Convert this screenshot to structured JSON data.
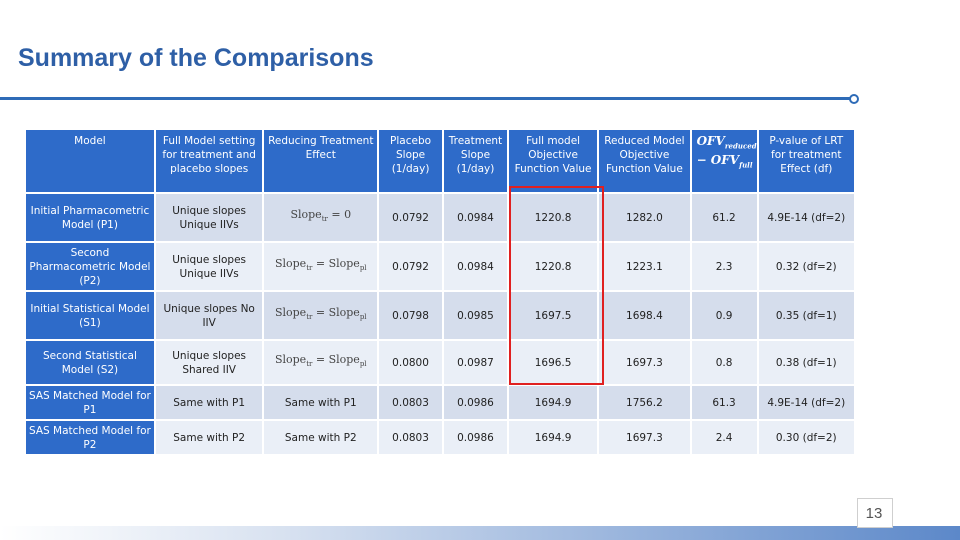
{
  "title": "Summary of the Comparisons",
  "page_number": "13",
  "colors": {
    "accent": "#2E6BC9",
    "highlight": "#E02020",
    "row_alt": "#D5DDEC",
    "row_plain": "#EAEFF7"
  },
  "table": {
    "headers": [
      "Model",
      "Full Model setting for treatment and placebo slopes",
      "Reducing Treatment Effect",
      "Placebo Slope (1/day)",
      "Treatment Slope (1/day)",
      "Full model Objective Function Value",
      "Reduced Model Objective Function Value",
      "",
      "P-value of LRT for treatment Effect (df)"
    ],
    "ofv_header": {
      "a": "OFV",
      "a_sub": "reduced",
      "minus": "− OFV",
      "b_sub": "full"
    },
    "rows": [
      {
        "model": "Initial Pharmacometric Model (P1)",
        "setting": "Unique slopes Unique IIVs",
        "reducing": {
          "type": "formula",
          "left": "Slope",
          "left_sub": "tr",
          "right": "= 0"
        },
        "placebo": "0.0792",
        "treatment": "0.0984",
        "full_ofv": "1220.8",
        "reduced_ofv": "1282.0",
        "diff": "61.2",
        "pvalue": "4.9E-14 (df=2)"
      },
      {
        "model": "Second Pharmacometric Model (P2)",
        "setting": "Unique slopes Unique IIVs",
        "reducing": {
          "type": "formula",
          "left": "Slope",
          "left_sub": "tr",
          "right": "= Slope",
          "right_sub": "pl"
        },
        "placebo": "0.0792",
        "treatment": "0.0984",
        "full_ofv": "1220.8",
        "reduced_ofv": "1223.1",
        "diff": "2.3",
        "pvalue": "0.32 (df=2)"
      },
      {
        "model": "Initial Statistical Model (S1)",
        "setting": "Unique slopes No IIV",
        "reducing": {
          "type": "formula",
          "left": "Slope",
          "left_sub": "tr",
          "right": "= Slope",
          "right_sub": "pl"
        },
        "placebo": "0.0798",
        "treatment": "0.0985",
        "full_ofv": "1697.5",
        "reduced_ofv": "1698.4",
        "diff": "0.9",
        "pvalue": "0.35 (df=1)"
      },
      {
        "model": "Second Statistical Model (S2)",
        "setting": "Unique slopes Shared IIV",
        "reducing": {
          "type": "formula",
          "left": "Slope",
          "left_sub": "tr",
          "right": "= Slope",
          "right_sub": "pl"
        },
        "placebo": "0.0800",
        "treatment": "0.0987",
        "full_ofv": "1696.5",
        "reduced_ofv": "1697.3",
        "diff": "0.8",
        "pvalue": "0.38 (df=1)"
      },
      {
        "model": "SAS Matched Model for P1",
        "setting": "Same with P1",
        "reducing": {
          "type": "text",
          "text": "Same with P1"
        },
        "placebo": "0.0803",
        "treatment": "0.0986",
        "full_ofv": "1694.9",
        "reduced_ofv": "1756.2",
        "diff": "61.3",
        "pvalue": "4.9E-14 (df=2)"
      },
      {
        "model": "SAS Matched Model for P2",
        "setting": "Same with P2",
        "reducing": {
          "type": "text",
          "text": "Same with P2"
        },
        "placebo": "0.0803",
        "treatment": "0.0986",
        "full_ofv": "1694.9",
        "reduced_ofv": "1697.3",
        "diff": "2.4",
        "pvalue": "0.30 (df=2)"
      }
    ]
  }
}
